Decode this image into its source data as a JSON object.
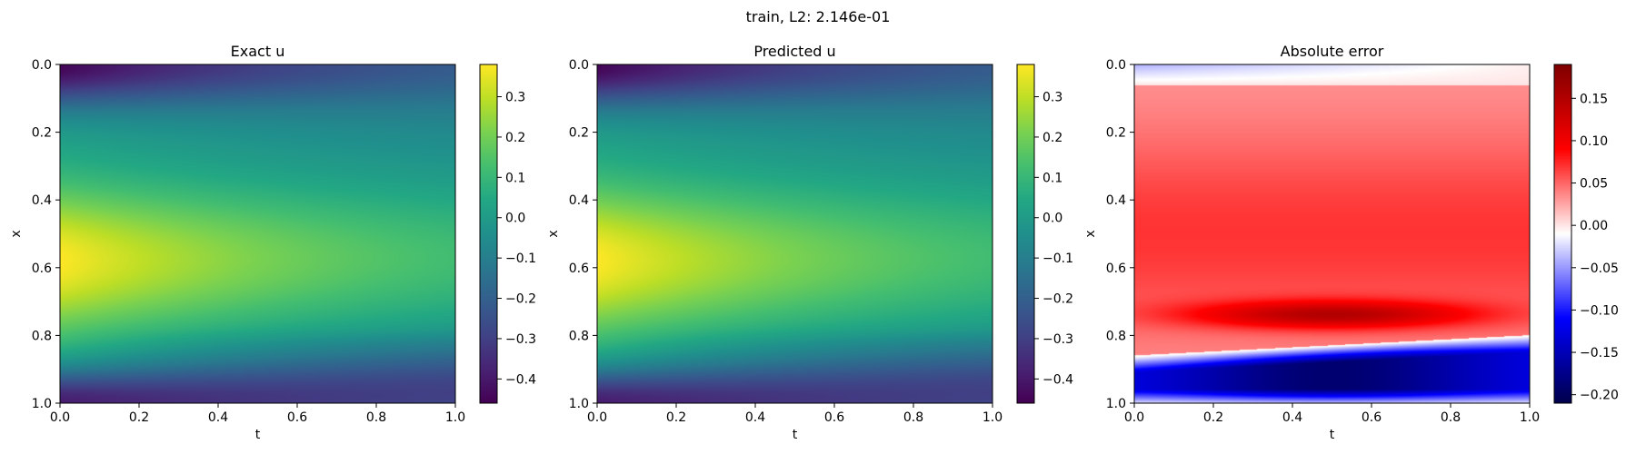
{
  "figure": {
    "suptitle": "train, L2: 2.146e-01"
  },
  "chart_data": [
    {
      "type": "heatmap",
      "title": "Exact u",
      "xlabel": "t",
      "ylabel": "x",
      "xlim": [
        0.0,
        1.0
      ],
      "ylim": [
        1.0,
        0.0
      ],
      "xticks": [
        "0.0",
        "0.2",
        "0.4",
        "0.6",
        "0.8",
        "1.0"
      ],
      "yticks": [
        "0.0",
        "0.2",
        "0.4",
        "0.6",
        "0.8",
        "1.0"
      ],
      "colormap": "viridis",
      "colorbar_range": [
        -0.46,
        0.38
      ],
      "colorbar_ticks": [
        "0.3",
        "0.2",
        "0.1",
        "0.0",
        "−0.1",
        "−0.2",
        "−0.3",
        "−0.4"
      ],
      "colorbar_tick_values": [
        0.3,
        0.2,
        0.1,
        0.0,
        -0.1,
        -0.2,
        -0.3,
        -0.4
      ]
    },
    {
      "type": "heatmap",
      "title": "Predicted u",
      "xlabel": "t",
      "ylabel": "x",
      "xlim": [
        0.0,
        1.0
      ],
      "ylim": [
        1.0,
        0.0
      ],
      "xticks": [
        "0.0",
        "0.2",
        "0.4",
        "0.6",
        "0.8",
        "1.0"
      ],
      "yticks": [
        "0.0",
        "0.2",
        "0.4",
        "0.6",
        "0.8",
        "1.0"
      ],
      "colormap": "viridis",
      "colorbar_range": [
        -0.46,
        0.38
      ],
      "colorbar_ticks": [
        "0.3",
        "0.2",
        "0.1",
        "0.0",
        "−0.1",
        "−0.2",
        "−0.3",
        "−0.4"
      ],
      "colorbar_tick_values": [
        0.3,
        0.2,
        0.1,
        0.0,
        -0.1,
        -0.2,
        -0.3,
        -0.4
      ]
    },
    {
      "type": "heatmap",
      "title": "Absolute error",
      "xlabel": "t",
      "ylabel": "x",
      "xlim": [
        0.0,
        1.0
      ],
      "ylim": [
        1.0,
        0.0
      ],
      "xticks": [
        "0.0",
        "0.2",
        "0.4",
        "0.6",
        "0.8",
        "1.0"
      ],
      "yticks": [
        "0.0",
        "0.2",
        "0.4",
        "0.6",
        "0.8",
        "1.0"
      ],
      "colormap": "seismic",
      "colorbar_range": [
        -0.21,
        0.19
      ],
      "colorbar_ticks": [
        "0.15",
        "0.10",
        "0.05",
        "0.00",
        "−0.05",
        "−0.10",
        "−0.15",
        "−0.20"
      ],
      "colorbar_tick_values": [
        0.15,
        0.1,
        0.05,
        0.0,
        -0.05,
        -0.1,
        -0.15,
        -0.2
      ]
    }
  ]
}
